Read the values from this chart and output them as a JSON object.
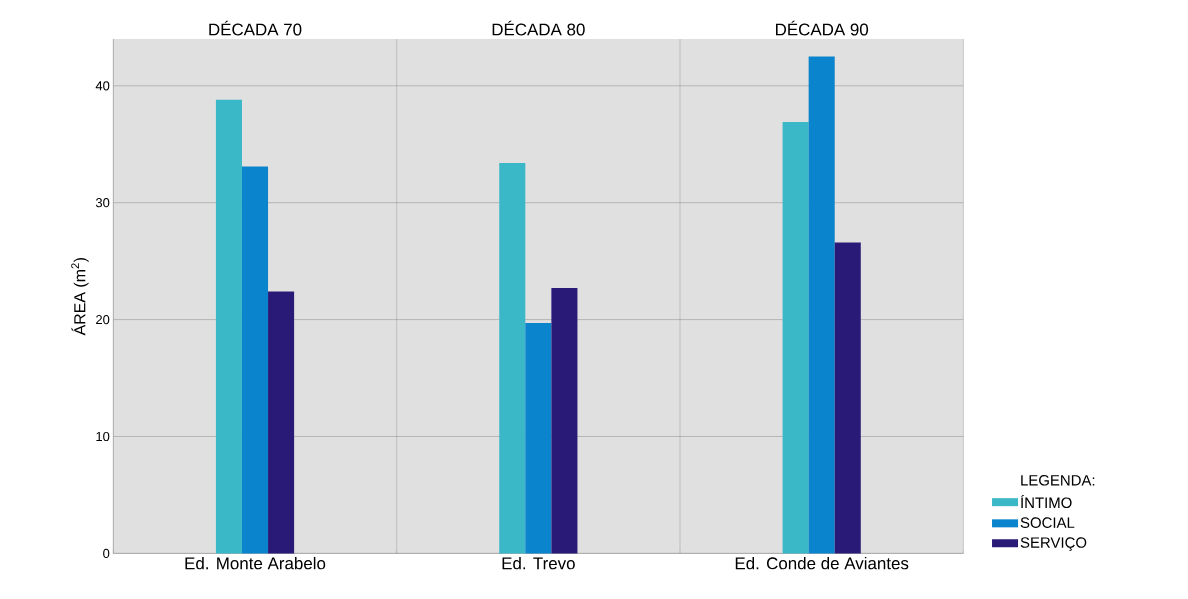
{
  "chart_data": {
    "type": "bar",
    "ylabel": "ÁREA (m$^{2}$)",
    "legend_title": "LEGENDA:",
    "legend": "right",
    "grid": "y",
    "categories": [
      "Ed. Monte Arabelo",
      "Ed. Trevo",
      "Ed. Conde de Aviantes"
    ],
    "annotations": [
      "DÉCADA 70",
      "DÉCADA 80",
      "DÉCADA 90"
    ],
    "series": [
      {
        "name": "ÍNTIMO",
        "color": "#3bb8c8",
        "values": [
          38.8,
          33.4,
          36.9
        ]
      },
      {
        "name": "SOCIAL",
        "color": "#0a84cc",
        "values": [
          33.1,
          19.7,
          42.5
        ]
      },
      {
        "name": "SERVIÇO",
        "color": "#2a1a78",
        "values": [
          22.4,
          22.7,
          26.6
        ]
      }
    ],
    "ylim": [
      0,
      44
    ],
    "yticks": [
      0,
      10,
      20,
      30,
      40
    ]
  }
}
